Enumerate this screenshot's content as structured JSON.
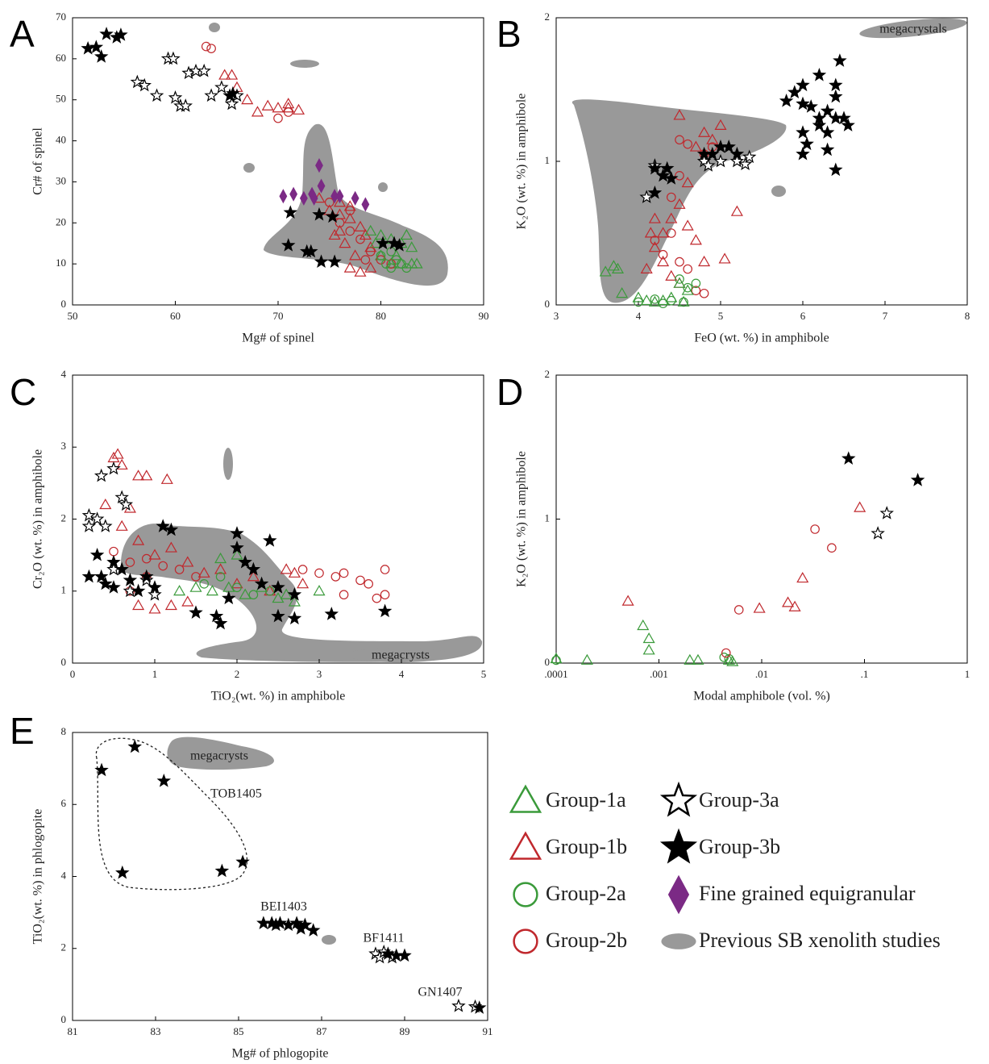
{
  "legend": [
    {
      "name": "Group-1a",
      "marker": "triangle",
      "color": "#3a9a3a",
      "filled": false
    },
    {
      "name": "Group-1b",
      "marker": "triangle",
      "color": "#c0282d",
      "filled": false
    },
    {
      "name": "Group-2a",
      "marker": "circle",
      "color": "#3a9a3a",
      "filled": false
    },
    {
      "name": "Group-2b",
      "marker": "circle",
      "color": "#c0282d",
      "filled": false
    },
    {
      "name": "Group-3a",
      "marker": "star",
      "color": "#000000",
      "filled": false
    },
    {
      "name": "Group-3b",
      "marker": "star",
      "color": "#000000",
      "filled": true
    },
    {
      "name": "Fine grained equigranular",
      "marker": "diamond",
      "color": "#7b2a85",
      "filled": true
    },
    {
      "name": "Previous SB xenolith studies",
      "marker": "blob",
      "color": "#999999",
      "filled": true
    }
  ],
  "chart_data": [
    {
      "type": "scatter",
      "label": "A",
      "xlabel": "Mg# of spinel",
      "ylabel": "Cr# of spinel",
      "xlim": [
        50,
        90
      ],
      "ylim": [
        0,
        70
      ],
      "xticks": [
        50,
        60,
        70,
        80,
        90
      ],
      "yticks": [
        0,
        10,
        20,
        30,
        40,
        50,
        60,
        70
      ],
      "xscale": "linear",
      "annotations": [],
      "series": [
        {
          "name": "Previous SB xenolith studies",
          "x": [],
          "y": []
        },
        {
          "name": "Group-1b",
          "x": [
            64.8,
            65.5,
            66,
            67,
            68,
            69,
            70,
            71,
            71,
            72,
            74,
            75,
            76,
            76,
            76.5,
            77,
            77.5,
            78,
            78.5,
            79,
            77,
            78,
            75.5,
            76,
            77,
            79
          ],
          "y": [
            56,
            56,
            53,
            50,
            47,
            48.5,
            48,
            49,
            48,
            47.5,
            26,
            23,
            22,
            18,
            15,
            21,
            12,
            19,
            17,
            14,
            9,
            8,
            17,
            25,
            24,
            9
          ]
        },
        {
          "name": "Group-1a",
          "x": [
            79,
            80,
            81,
            82,
            82.5,
            83,
            81,
            82,
            83,
            83.5,
            80,
            81.5,
            79.5
          ],
          "y": [
            18,
            17,
            16,
            15,
            17,
            14,
            10,
            10,
            10,
            10,
            12,
            12,
            15
          ]
        },
        {
          "name": "Group-2b",
          "x": [
            63,
            63.5,
            70,
            71,
            75,
            76,
            77,
            78,
            79,
            80,
            81,
            78.5,
            77
          ],
          "y": [
            63,
            62.5,
            45.5,
            47,
            25,
            20,
            23,
            16,
            13,
            11,
            10,
            11,
            18
          ]
        },
        {
          "name": "Group-2a",
          "x": [
            80,
            80.5,
            81,
            81.5,
            82,
            82.5,
            81
          ],
          "y": [
            12,
            10,
            9,
            11,
            10,
            9,
            13
          ]
        },
        {
          "name": "Fine grained equigranular",
          "x": [
            70.5,
            71.5,
            72.5,
            73.3,
            74,
            74.2,
            75.5,
            76,
            77.5,
            78.5,
            73.5
          ],
          "y": [
            26.5,
            27,
            26,
            27,
            34,
            29,
            26.5,
            26.5,
            26,
            24.5,
            26
          ]
        },
        {
          "name": "Group-3a",
          "x": [
            56.3,
            57,
            58.2,
            59.3,
            59.8,
            60,
            60.5,
            61,
            61.3,
            62,
            62.8,
            63.5,
            64.5,
            65.5,
            66
          ],
          "y": [
            54.3,
            53.5,
            51,
            60,
            60,
            50.5,
            48.5,
            48.5,
            56.5,
            57,
            57,
            51,
            53,
            49,
            51
          ]
        },
        {
          "name": "Group-3b",
          "x": [
            51.5,
            52.3,
            52.8,
            53.3,
            54.3,
            54.7,
            65.3,
            65.6,
            71.2,
            71,
            72.8,
            73.2,
            74,
            74.2,
            75.3,
            75.5,
            80.2,
            81.3,
            81.8
          ],
          "y": [
            62.5,
            62.8,
            60.5,
            66,
            65.2,
            65.8,
            51,
            51.5,
            22.5,
            14.5,
            13,
            13,
            22,
            10.5,
            21.5,
            10.5,
            15,
            15,
            14.5
          ]
        }
      ]
    },
    {
      "type": "scatter",
      "label": "B",
      "xlabel": "FeO (wt. %) in amphibole",
      "ylabel": "K₂O (wt. %) in amphibole",
      "xlim": [
        3,
        8
      ],
      "ylim": [
        0,
        2
      ],
      "xticks": [
        3,
        4,
        5,
        6,
        7,
        8
      ],
      "yticks": [
        0,
        1,
        2
      ],
      "xscale": "linear",
      "annotations": [
        "megacrystals"
      ],
      "series": [
        {
          "name": "Group-1b",
          "x": [
            4.5,
            4.8,
            5.0,
            5.2,
            5.05,
            4.1,
            4.2,
            4.3,
            4.4,
            4.5,
            4.6,
            4.7,
            4.8,
            4.2,
            4.3,
            4.4,
            4.5,
            4.6,
            4.7,
            4.9,
            4.15
          ],
          "y": [
            1.32,
            1.2,
            1.25,
            0.65,
            0.32,
            0.25,
            0.4,
            0.5,
            0.6,
            0.7,
            0.55,
            0.45,
            0.3,
            0.6,
            0.3,
            0.2,
            0.15,
            0.85,
            1.1,
            1.15,
            0.5
          ]
        },
        {
          "name": "Group-2b",
          "x": [
            4.5,
            4.6,
            4.8,
            4.9,
            4.2,
            4.3,
            4.4,
            4.5,
            4.6,
            4.7,
            4.8,
            4.4,
            4.5
          ],
          "y": [
            1.15,
            1.12,
            1.05,
            1.1,
            0.45,
            0.35,
            0.5,
            0.3,
            0.25,
            0.1,
            0.08,
            0.75,
            0.9
          ]
        },
        {
          "name": "Group-1a",
          "x": [
            3.6,
            3.7,
            3.75,
            3.8,
            4.0,
            4.1,
            4.2,
            4.3,
            4.4,
            4.5,
            4.6,
            4.55
          ],
          "y": [
            0.23,
            0.27,
            0.25,
            0.08,
            0.05,
            0.03,
            0.02,
            0.03,
            0.05,
            0.15,
            0.1,
            0.02
          ]
        },
        {
          "name": "Group-2a",
          "x": [
            4.0,
            4.2,
            4.4,
            4.5,
            4.6,
            4.7,
            4.55,
            4.3
          ],
          "y": [
            0.02,
            0.04,
            0.03,
            0.18,
            0.12,
            0.15,
            0.02,
            0.01
          ]
        },
        {
          "name": "Group-3a",
          "x": [
            4.2,
            4.8,
            5.0,
            5.2,
            5.3,
            5.35,
            4.85,
            4.1
          ],
          "y": [
            0.97,
            1.0,
            1.0,
            1.0,
            0.98,
            1.03,
            0.97,
            0.75
          ]
        },
        {
          "name": "Group-3b",
          "x": [
            5.8,
            5.9,
            6.0,
            6.1,
            6.0,
            6.05,
            6.2,
            6.2,
            6.3,
            6.3,
            6.4,
            6.4,
            6.4,
            6.45,
            6.3,
            6.5,
            6.55,
            6.2,
            6.0,
            6.4,
            6.0,
            4.2,
            4.3,
            4.4,
            4.35,
            4.2,
            4.8,
            4.9,
            5.0,
            5.1,
            5.2
          ],
          "y": [
            1.42,
            1.48,
            1.4,
            1.38,
            1.2,
            1.12,
            1.3,
            1.25,
            1.2,
            1.35,
            1.3,
            1.45,
            1.53,
            1.7,
            1.08,
            1.3,
            1.25,
            1.6,
            1.53,
            0.94,
            1.05,
            0.95,
            0.9,
            0.88,
            0.95,
            0.78,
            1.05,
            1.05,
            1.1,
            1.1,
            1.05
          ]
        }
      ]
    },
    {
      "type": "scatter",
      "label": "C",
      "xlabel": "TiO₂(wt. %) in amphibole",
      "ylabel": "Cr₂O (wt. %) in amphibole",
      "xlim": [
        0,
        5
      ],
      "ylim": [
        0,
        4
      ],
      "xticks": [
        0,
        1,
        2,
        3,
        4,
        5
      ],
      "yticks": [
        0,
        1,
        2,
        3,
        4
      ],
      "xscale": "linear",
      "annotations": [
        "megacrysts"
      ],
      "series": [
        {
          "name": "Group-1b",
          "x": [
            0.5,
            0.55,
            0.6,
            0.8,
            0.9,
            1.15,
            0.7,
            0.4,
            0.6,
            0.8,
            1.0,
            1.2,
            1.4,
            1.6,
            1.8,
            2.0,
            2.2,
            2.4,
            2.6,
            2.8,
            0.8,
            1.0,
            1.2,
            1.4,
            2.7
          ],
          "y": [
            2.85,
            2.9,
            2.75,
            2.6,
            2.6,
            2.55,
            2.15,
            2.2,
            1.9,
            1.7,
            1.5,
            1.6,
            1.4,
            1.25,
            1.3,
            1.1,
            1.2,
            1.0,
            1.3,
            1.1,
            0.8,
            0.75,
            0.8,
            0.85,
            1.25
          ]
        },
        {
          "name": "Group-1a",
          "x": [
            1.3,
            1.5,
            1.7,
            1.9,
            2.0,
            2.1,
            2.3,
            2.5,
            2.6,
            2.7,
            3.0,
            1.8
          ],
          "y": [
            1.0,
            1.05,
            1.0,
            1.05,
            1.5,
            0.95,
            1.05,
            0.9,
            0.95,
            0.85,
            1.0,
            1.45
          ]
        },
        {
          "name": "Group-2b",
          "x": [
            0.5,
            0.7,
            0.9,
            1.1,
            1.3,
            1.5,
            2.8,
            3.0,
            3.2,
            3.3,
            3.5,
            3.6,
            3.7,
            3.8,
            3.8,
            3.3,
            0.7,
            0.9
          ],
          "y": [
            1.55,
            1.4,
            1.45,
            1.35,
            1.3,
            1.2,
            1.3,
            1.25,
            1.2,
            1.25,
            1.15,
            1.1,
            0.9,
            1.3,
            0.95,
            0.95,
            1.0,
            1.2
          ]
        },
        {
          "name": "Group-2a",
          "x": [
            1.6,
            1.8,
            2.0,
            2.2,
            2.4
          ],
          "y": [
            1.1,
            1.2,
            1.05,
            0.95,
            1.0
          ]
        },
        {
          "name": "Group-3a",
          "x": [
            0.2,
            0.3,
            0.35,
            0.5,
            0.6,
            0.65,
            0.2,
            0.4,
            0.7,
            0.9,
            1.0,
            0.5
          ],
          "y": [
            2.05,
            2.0,
            2.6,
            2.7,
            2.3,
            2.2,
            1.9,
            1.9,
            1.0,
            1.15,
            0.95,
            1.3
          ]
        },
        {
          "name": "Group-3b",
          "x": [
            0.35,
            0.4,
            0.5,
            0.6,
            0.7,
            0.8,
            0.9,
            1.0,
            1.1,
            1.2,
            1.5,
            1.75,
            1.8,
            1.9,
            2.0,
            2.0,
            2.1,
            2.2,
            2.3,
            2.5,
            2.5,
            2.7,
            2.7,
            3.15,
            3.8,
            0.2,
            0.3,
            0.5,
            2.4
          ],
          "y": [
            1.2,
            1.1,
            1.05,
            1.3,
            1.15,
            1.0,
            1.2,
            1.05,
            1.9,
            1.85,
            0.7,
            0.65,
            0.55,
            0.9,
            1.8,
            1.6,
            1.4,
            1.3,
            1.1,
            1.05,
            0.65,
            0.95,
            0.62,
            0.68,
            0.72,
            1.2,
            1.5,
            1.4,
            1.7
          ]
        }
      ]
    },
    {
      "type": "scatter",
      "label": "D",
      "xlabel": "Modal amphibole (vol. %)",
      "ylabel": "K₂O (wt. %) in amphibole",
      "xlim": [
        0.0001,
        1
      ],
      "ylim": [
        0,
        2
      ],
      "xscale": "log",
      "xticks": [
        {
          "value": 0.0001,
          "label": ".0001"
        },
        {
          "value": 0.001,
          "label": ".001"
        },
        {
          "value": 0.01,
          "label": ".01"
        },
        {
          "value": 0.1,
          "label": ".1"
        },
        1
      ],
      "yticks": [
        0,
        1,
        2
      ],
      "annotations": [],
      "series": [
        {
          "name": "Group-1a",
          "x": [
            0.0001,
            0.0002,
            0.0007,
            0.0008,
            0.0008,
            0.002,
            0.0024,
            0.0048,
            0.0052
          ],
          "y": [
            0.03,
            0.02,
            0.26,
            0.17,
            0.09,
            0.02,
            0.02,
            0.02,
            0.01
          ]
        },
        {
          "name": "Group-2a",
          "x": [
            0.0001,
            0.0043,
            0.0048
          ],
          "y": [
            0.02,
            0.04,
            0.03
          ]
        },
        {
          "name": "Group-1b",
          "x": [
            0.0005,
            0.0095,
            0.018,
            0.021,
            0.025,
            0.09
          ],
          "y": [
            0.43,
            0.38,
            0.42,
            0.39,
            0.59,
            1.08
          ]
        },
        {
          "name": "Group-2b",
          "x": [
            0.006,
            0.033,
            0.048,
            0.0045
          ],
          "y": [
            0.37,
            0.93,
            0.8,
            0.07
          ]
        },
        {
          "name": "Group-3a",
          "x": [
            0.165,
            0.135
          ],
          "y": [
            1.04,
            0.9
          ]
        },
        {
          "name": "Group-3b",
          "x": [
            0.07,
            0.33
          ],
          "y": [
            1.42,
            1.27
          ]
        }
      ]
    },
    {
      "type": "scatter",
      "label": "E",
      "xlabel": "Mg# of phlogopite",
      "ylabel": "TiO₂(wt. %) in phlogopite",
      "xlim": [
        81,
        91
      ],
      "ylim": [
        0,
        8
      ],
      "xticks": [
        81,
        83,
        85,
        87,
        89,
        91
      ],
      "yticks": [
        0,
        2,
        4,
        6,
        8
      ],
      "xscale": "linear",
      "annotations": [
        "megacrysts",
        "TOB1405",
        "BEI1403",
        "BF1411",
        "GN1407"
      ],
      "series": [
        {
          "name": "Group-3a",
          "x": [
            88.3,
            88.4,
            88.5,
            88.7,
            90.3,
            90.7
          ],
          "y": [
            1.85,
            1.75,
            1.9,
            1.75,
            0.4,
            0.38
          ]
        },
        {
          "name": "Group-3b",
          "x": [
            81.7,
            82.5,
            83.2,
            82.2,
            84.6,
            85.1,
            85.6,
            85.8,
            86,
            86.2,
            86.4,
            86.6,
            86.8,
            86.5,
            85.9,
            88.6,
            88.8,
            89,
            90.8
          ],
          "y": [
            6.95,
            7.6,
            6.65,
            4.1,
            4.15,
            4.4,
            2.7,
            2.7,
            2.7,
            2.65,
            2.7,
            2.65,
            2.5,
            2.55,
            2.65,
            1.85,
            1.8,
            1.8,
            0.35
          ]
        }
      ]
    }
  ]
}
